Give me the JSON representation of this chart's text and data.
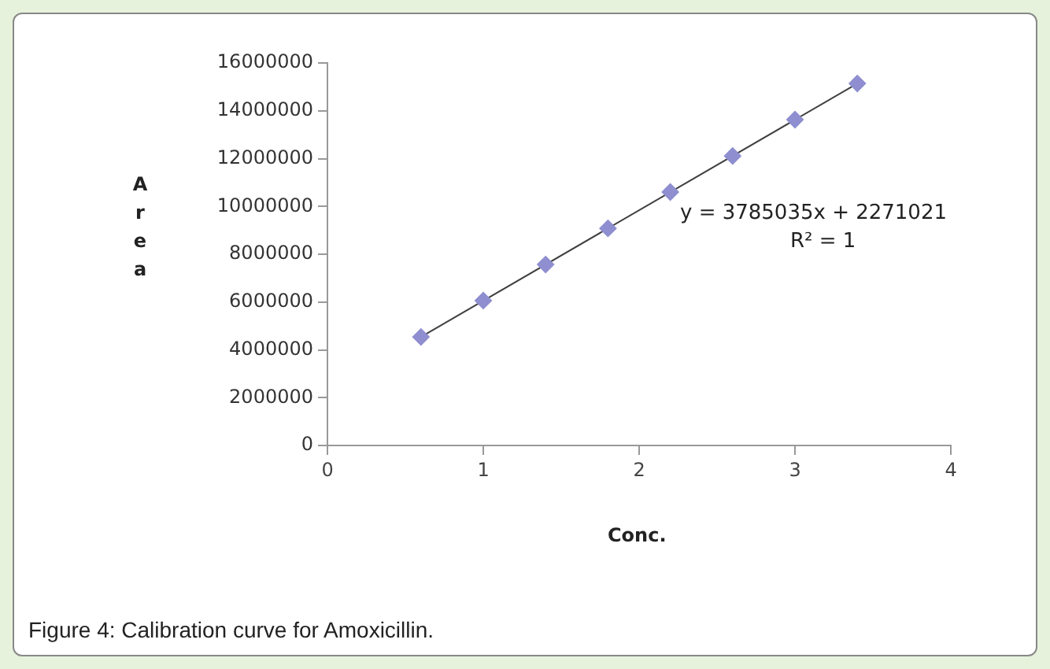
{
  "chart_data": {
    "type": "scatter",
    "xlabel": "Conc.",
    "ylabel": "Area",
    "xlim": [
      0,
      4
    ],
    "xticks": [
      0,
      1,
      2,
      3,
      4
    ],
    "ylim": [
      0,
      16000000
    ],
    "yticks": [
      0,
      2000000,
      4000000,
      6000000,
      8000000,
      10000000,
      12000000,
      14000000,
      16000000
    ],
    "marker": "diamond",
    "grid": false,
    "annotations": [
      "y = 3785035x + 2271021",
      "R² = 1",
      "Figure 4: Calibration curve for Amoxicillin."
    ],
    "series": [
      {
        "color": "#8e8ed0",
        "x": [
          0.6,
          1.0,
          1.4,
          1.8,
          2.2,
          2.6,
          3.0,
          3.4
        ],
        "values": [
          4540000,
          6060000,
          7570000,
          9080000,
          10600000,
          12110000,
          13630000,
          15140000
        ]
      },
      {
        "type": "line",
        "color": "#404040",
        "marker": "none",
        "x": [
          0.6,
          3.4
        ],
        "values": [
          4540000,
          15140000
        ]
      }
    ]
  }
}
